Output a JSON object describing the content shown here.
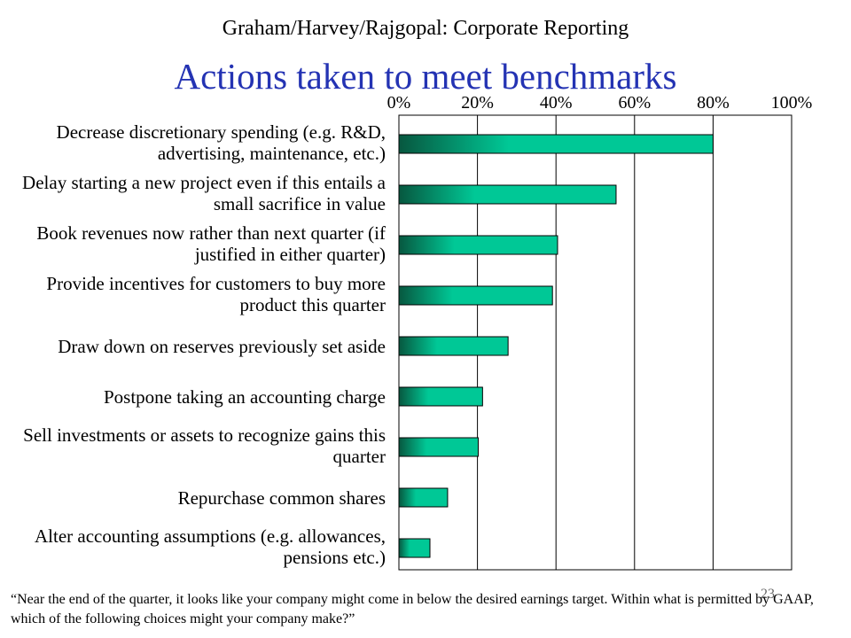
{
  "header": {
    "title": "Graham/Harvey/Rajgopal: Corporate Reporting"
  },
  "chart_data": {
    "type": "bar",
    "orientation": "horizontal",
    "title": "Actions taken to meet benchmarks",
    "categories": [
      [
        "Decrease discretionary spending (e.g. R&D,",
        "advertising, maintenance,  etc.)"
      ],
      [
        "Delay starting a new project even if this entails a",
        "small sacrifice in value"
      ],
      [
        "Book revenues now rather than next quarter (if",
        "justified in either quarter)"
      ],
      [
        "Provide incentives for customers to buy more",
        "product this quarter"
      ],
      [
        "Draw down on reserves previously set aside"
      ],
      [
        "Postpone taking an accounting charge"
      ],
      [
        "Sell investments or assets to recognize gains this",
        "quarter"
      ],
      [
        "Repurchase common shares"
      ],
      [
        "Alter accounting assumptions (e.g. allowances,",
        "pensions etc.)"
      ]
    ],
    "values": [
      80,
      55.3,
      40.4,
      39.1,
      27.8,
      21.3,
      20.2,
      12.4,
      7.9
    ],
    "xlim": [
      0,
      100
    ],
    "xticks": [
      "0%",
      "20%",
      "40%",
      "60%",
      "80%",
      "100%"
    ],
    "tick_position": "top",
    "grid": true,
    "bar_gradient": [
      "#07573f",
      "#00c896"
    ]
  },
  "footnote": {
    "text": "“Near the end of the quarter, it looks like your company might come in below the desired earnings target. Within what is permitted by GAAP, which of the following choices might your company make?”"
  },
  "page_number": "23"
}
